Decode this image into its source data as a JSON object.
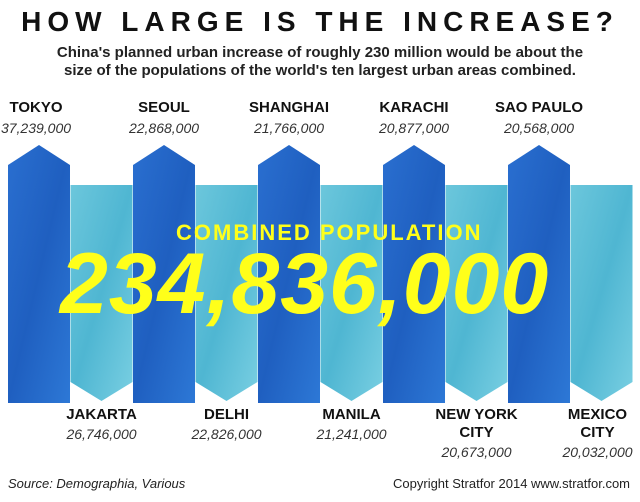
{
  "title": "HOW LARGE IS THE INCREASE?",
  "subtitle_line1": "China's planned urban increase of roughly 230 million would be about the",
  "subtitle_line2": "size of the populations of the world's ten largest urban areas combined.",
  "combined_label": "COMBINED POPULATION",
  "combined_value": "234,836,000",
  "footer": {
    "source": "Source: Demographia, Various",
    "copyright": "Copyright Stratfor 2014  www.stratfor.com"
  },
  "colors": {
    "dark_blue": "#1f5fc0",
    "light_blue": "#5fc0d8",
    "highlight": "#ffff1a"
  },
  "chart_data": {
    "type": "bar",
    "title": "HOW LARGE IS THE INCREASE?",
    "unit": "people",
    "total": 234836000,
    "cities": [
      {
        "name": "TOKYO",
        "label": "37,239,000",
        "value": 37239000,
        "position": "top"
      },
      {
        "name": "JAKARTA",
        "label": "26,746,000",
        "value": 26746000,
        "position": "bottom"
      },
      {
        "name": "SEOUL",
        "label": "22,868,000",
        "value": 22868000,
        "position": "top"
      },
      {
        "name": "DELHI",
        "label": "22,826,000",
        "value": 22826000,
        "position": "bottom"
      },
      {
        "name": "SHANGHAI",
        "label": "21,766,000",
        "value": 21766000,
        "position": "top"
      },
      {
        "name": "MANILA",
        "label": "21,241,000",
        "value": 21241000,
        "position": "bottom"
      },
      {
        "name": "KARACHI",
        "label": "20,877,000",
        "value": 20877000,
        "position": "top"
      },
      {
        "name": "NEW YORK CITY",
        "label": "20,673,000",
        "value": 20673000,
        "position": "bottom"
      },
      {
        "name": "SAO PAULO",
        "label": "20,568,000",
        "value": 20568000,
        "position": "top"
      },
      {
        "name": "MEXICO CITY",
        "label": "20,032,000",
        "value": 20032000,
        "position": "bottom"
      }
    ]
  }
}
